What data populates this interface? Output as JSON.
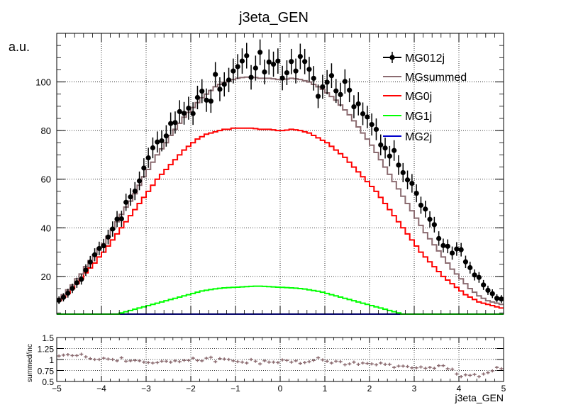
{
  "chart_data": [
    {
      "type": "line",
      "title": "j3eta_GEN",
      "ylabel": "a.u.",
      "xlabel": "",
      "xlim": [
        -5,
        5
      ],
      "ylim": [
        4.5,
        120
      ],
      "grid": true,
      "legend_placement": "top-right",
      "x_ticks": [
        "−5",
        "−4",
        "−3",
        "−2",
        "−1",
        "0",
        "1",
        "2",
        "3",
        "4",
        "5"
      ],
      "y_ticks": [
        "20",
        "40",
        "60",
        "80",
        "100"
      ],
      "bins": {
        "nbins": 100,
        "low": -5,
        "high": 5
      },
      "series": [
        {
          "name": "MG012j",
          "style": "points",
          "color": "#000000",
          "values": [
            10.2,
            11.4,
            13.1,
            15.1,
            17.4,
            18.8,
            22.6,
            25.9,
            28.9,
            31.5,
            32.6,
            36.2,
            39.5,
            43.6,
            43.7,
            50.5,
            52.7,
            55.1,
            59.3,
            64.6,
            68.8,
            72.9,
            75.3,
            75.8,
            77.8,
            82.9,
            83.3,
            87.8,
            87.1,
            89.2,
            87.0,
            93.6,
            96.2,
            92.5,
            92.1,
            103.1,
            97.0,
            99.0,
            100.8,
            104.5,
            106.3,
            108.6,
            110.8,
            101.9,
            105.7,
            112.2,
            104.1,
            108.2,
            107.3,
            108.6,
            101.6,
            103.8,
            108.4,
            104.5,
            110.5,
            108.4,
            105.2,
            101.5,
            94.1,
            98.0,
            99.9,
            102.6,
            96.3,
            94.8,
            100.2,
            96.6,
            89.8,
            91.0,
            86.9,
            85.6,
            82.5,
            80.5,
            74.1,
            72.8,
            69.5,
            71.8,
            65.8,
            62.7,
            59.7,
            58.3,
            54.2,
            49.3,
            47.7,
            43.5,
            41.3,
            35.6,
            32.7,
            32.4,
            29.6,
            31.3,
            31.0,
            26.0,
            23.6,
            20.6,
            19.6,
            16.5,
            14.3,
            12.9,
            11.0,
            10.7
          ]
        },
        {
          "name": "MGsummed",
          "style": "histogram",
          "color": "#8b6b70",
          "values": [
            11.0,
            12.5,
            14.5,
            16.5,
            19.0,
            21.0,
            24.0,
            26.5,
            29.0,
            31.5,
            33.5,
            36.5,
            39.5,
            42.5,
            45.5,
            48.5,
            51.0,
            54.0,
            57.5,
            61.0,
            64.0,
            67.0,
            70.0,
            72.5,
            75.0,
            78.0,
            80.5,
            83.0,
            85.5,
            87.5,
            89.5,
            91.5,
            93.5,
            95.0,
            96.5,
            98.0,
            99.0,
            99.8,
            100.5,
            101.0,
            101.5,
            101.8,
            102.0,
            102.0,
            101.8,
            101.5,
            101.5,
            101.5,
            101.3,
            101.0,
            101.0,
            101.2,
            101.5,
            101.3,
            101.0,
            100.5,
            100.0,
            99.0,
            98.0,
            97.0,
            95.5,
            94.0,
            92.5,
            90.5,
            88.5,
            86.5,
            84.0,
            81.5,
            79.0,
            76.5,
            74.0,
            71.0,
            68.0,
            65.0,
            62.0,
            59.0,
            56.0,
            53.0,
            50.0,
            47.0,
            44.0,
            41.0,
            38.0,
            35.5,
            33.0,
            30.5,
            28.0,
            25.5,
            23.0,
            21.0,
            19.0,
            17.0,
            15.0,
            13.5,
            12.0,
            11.0,
            10.0,
            9.5,
            9.0,
            8.5
          ]
        },
        {
          "name": "MG0j",
          "style": "histogram",
          "color": "#ff0000",
          "values": [
            10.0,
            11.5,
            13.0,
            15.0,
            17.0,
            19.0,
            21.5,
            23.5,
            25.5,
            28.0,
            30.0,
            32.5,
            35.0,
            37.5,
            40.0,
            42.5,
            45.0,
            47.5,
            50.0,
            52.5,
            55.0,
            57.5,
            60.0,
            62.0,
            64.0,
            66.0,
            68.0,
            70.0,
            72.0,
            73.5,
            75.0,
            76.5,
            77.5,
            78.5,
            79.0,
            79.5,
            80.0,
            80.5,
            80.5,
            81.0,
            81.0,
            81.0,
            81.0,
            81.0,
            80.8,
            80.5,
            80.5,
            80.5,
            80.3,
            80.0,
            80.0,
            80.2,
            80.5,
            80.3,
            80.0,
            79.5,
            79.0,
            78.0,
            77.0,
            76.0,
            75.0,
            73.5,
            72.0,
            70.5,
            69.0,
            67.0,
            65.0,
            63.0,
            61.0,
            59.0,
            57.0,
            55.0,
            52.5,
            50.0,
            47.5,
            45.0,
            42.5,
            40.0,
            37.5,
            35.0,
            32.5,
            30.0,
            28.0,
            26.0,
            24.0,
            22.0,
            20.0,
            18.5,
            17.0,
            15.5,
            14.0,
            12.5,
            11.5,
            10.5,
            9.5,
            9.0,
            8.5,
            8.0,
            7.5,
            7.0
          ]
        },
        {
          "name": "MG1j",
          "style": "histogram",
          "color": "#00ff00",
          "values": [
            0.0,
            0.0,
            0.0,
            0.0,
            0.0,
            0.0,
            0.0,
            0.0,
            0.0,
            0.0,
            0.0,
            0.0,
            0.0,
            0.0,
            5.0,
            5.5,
            6.0,
            6.5,
            7.0,
            7.5,
            8.0,
            8.5,
            9.0,
            9.5,
            10.0,
            10.5,
            11.0,
            11.5,
            12.0,
            12.5,
            13.0,
            13.5,
            14.0,
            14.3,
            14.6,
            14.9,
            15.1,
            15.3,
            15.4,
            15.5,
            15.6,
            15.7,
            15.8,
            15.9,
            16.0,
            16.0,
            15.9,
            15.8,
            15.7,
            15.6,
            15.5,
            15.4,
            15.3,
            15.2,
            15.0,
            14.8,
            14.5,
            14.2,
            13.9,
            13.5,
            13.0,
            12.5,
            12.0,
            11.5,
            11.0,
            10.5,
            10.0,
            9.5,
            9.0,
            8.5,
            8.0,
            7.5,
            7.0,
            6.5,
            6.0,
            5.5,
            5.0,
            0.0,
            0.0,
            0.0,
            0.0,
            0.0,
            0.0,
            0.0,
            0.0,
            0.0,
            0.0,
            0.0,
            0.0,
            0.0,
            0.0,
            0.0,
            0.0,
            0.0,
            0.0,
            0.0,
            0.0,
            0.0,
            0.0,
            0.0
          ]
        },
        {
          "name": "MG2j",
          "style": "histogram",
          "color": "#0000cc",
          "values": [
            0.0,
            0.0,
            0.0,
            0.0,
            0.0,
            0.0,
            0.0,
            0.0,
            0.0,
            0.0,
            0.0,
            0.0,
            0.0,
            0.0,
            0.0,
            0.0,
            0.0,
            0.0,
            0.0,
            0.0,
            0.0,
            0.0,
            0.0,
            0.0,
            0.0,
            0.0,
            0.0,
            0.0,
            0.0,
            0.0,
            0.0,
            0.0,
            0.0,
            0.0,
            0.0,
            0.0,
            0.0,
            0.0,
            0.0,
            0.0,
            0.0,
            0.0,
            0.0,
            0.0,
            0.0,
            0.0,
            0.0,
            0.0,
            0.0,
            0.0,
            0.0,
            0.0,
            0.0,
            0.0,
            0.0,
            0.0,
            0.0,
            0.0,
            0.0,
            0.0,
            0.0,
            0.0,
            0.0,
            0.0,
            0.0,
            0.0,
            0.0,
            0.0,
            0.0,
            0.0,
            0.0,
            0.0,
            0.0,
            0.0,
            0.0,
            0.0,
            0.0,
            0.0,
            0.0,
            0.0,
            0.0,
            0.0,
            0.0,
            0.0,
            0.0,
            0.0,
            0.0,
            0.0,
            0.0,
            0.0,
            0.0,
            0.0,
            0.0,
            0.0,
            0.0,
            0.0,
            0.0,
            0.0,
            0.0,
            0.0
          ]
        }
      ]
    },
    {
      "type": "scatter",
      "title": "",
      "xlabel": "j3eta_GEN",
      "ylabel": "summed/inc",
      "xlim": [
        -5,
        5
      ],
      "ylim": [
        0.5,
        1.5
      ],
      "grid": true,
      "x_ticks": [
        "−5",
        "−4",
        "−3",
        "−2",
        "−1",
        "0",
        "1",
        "2",
        "3",
        "4",
        "5"
      ],
      "y_ticks": [
        "0.5",
        "0.75",
        "1",
        "1.25",
        "1.5"
      ],
      "bins": {
        "nbins": 100,
        "low": -5,
        "high": 5
      },
      "series": [
        {
          "name": "",
          "style": "crosses",
          "color": "#8b6b70",
          "values": [
            1.08,
            1.1,
            1.11,
            1.09,
            1.09,
            1.12,
            1.06,
            1.02,
            1.0,
            1.0,
            1.03,
            1.01,
            1.0,
            0.97,
            1.04,
            0.96,
            0.97,
            0.98,
            0.97,
            0.94,
            0.93,
            0.92,
            0.93,
            0.96,
            0.96,
            0.94,
            0.97,
            0.95,
            0.98,
            0.98,
            1.03,
            0.98,
            0.97,
            1.03,
            1.05,
            0.95,
            1.02,
            1.01,
            1.0,
            0.97,
            0.95,
            0.94,
            0.92,
            1.0,
            0.96,
            0.9,
            0.97,
            0.94,
            0.94,
            0.93,
            0.99,
            0.98,
            0.94,
            0.97,
            0.91,
            0.93,
            0.95,
            0.98,
            1.04,
            0.99,
            0.96,
            0.92,
            0.96,
            0.95,
            0.88,
            0.9,
            0.94,
            0.89,
            0.92,
            0.91,
            0.9,
            0.88,
            0.92,
            0.89,
            0.89,
            0.82,
            0.85,
            0.85,
            0.84,
            0.81,
            0.81,
            0.83,
            0.8,
            0.82,
            0.8,
            0.86,
            0.86,
            0.79,
            0.78,
            0.67,
            0.61,
            0.65,
            0.64,
            0.66,
            0.61,
            0.67,
            0.7,
            0.74,
            0.82,
            0.79
          ]
        }
      ]
    }
  ]
}
